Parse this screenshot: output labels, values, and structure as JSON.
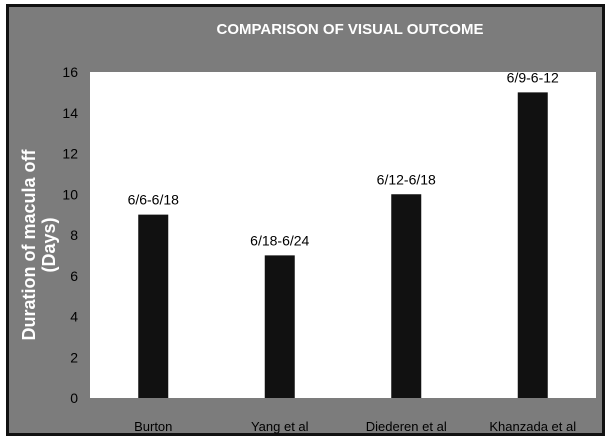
{
  "chart_data": {
    "type": "bar",
    "title": "COMPARISON OF VISUAL OUTCOME",
    "xlabel": "",
    "ylabel": "Duration of macula off\n(Days)",
    "categories": [
      "Burton",
      "Yang et al",
      "Diederen et al",
      "Khanzada et al"
    ],
    "values": [
      9,
      7,
      10,
      15
    ],
    "data_labels": [
      "6/6-6/18",
      "6/18-6/24",
      "6/12-6/18",
      "6/9-6-12"
    ],
    "ylim": [
      0,
      16
    ],
    "yticks": [
      "0",
      "2",
      "4",
      "6",
      "8",
      "10",
      "12",
      "14",
      "16"
    ],
    "grid": false,
    "legend": "none",
    "colors": {
      "frame_bg": "#7c7c7c",
      "plot_bg": "#ffffff",
      "bar": "#111111",
      "title": "#ffffff",
      "ylabel": "#ffffff",
      "ticks": "#000000"
    }
  }
}
